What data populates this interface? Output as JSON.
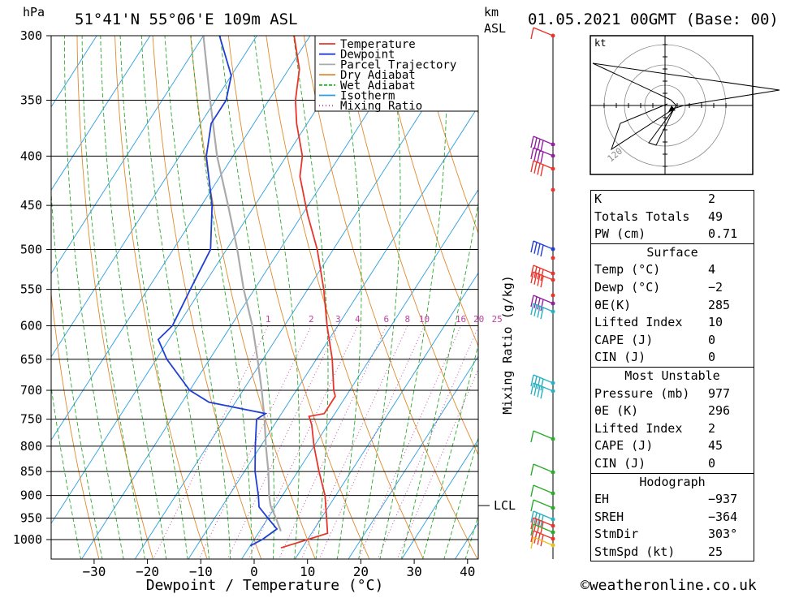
{
  "header": {
    "pressure_unit": "hPa",
    "location": "51°41'N 55°06'E 109m ASL",
    "km_label": "km",
    "asl_label": "ASL",
    "datetime": "01.05.2021 00GMT (Base: 00)"
  },
  "chart_data": {
    "type": "line",
    "xlabel": "Dewpoint / Temperature (°C)",
    "ylabel": "hPa",
    "mixing_ratio_axis_label": "Mixing Ratio (g/kg)",
    "x_ticks": [
      -30,
      -20,
      -10,
      0,
      10,
      20,
      30,
      40
    ],
    "y_ticks": [
      300,
      350,
      400,
      450,
      500,
      550,
      600,
      650,
      700,
      750,
      800,
      850,
      900,
      950,
      1000
    ],
    "pressure_range": [
      300,
      1050
    ],
    "mixing_ratio_labels": [
      "1",
      "2",
      "3",
      "4",
      "6",
      "8",
      "10",
      "16",
      "20",
      "25"
    ],
    "lcl_label": "LCL",
    "lcl_pressure": 922,
    "legend": {
      "placement": "top-right",
      "entries": [
        {
          "name": "Temperature",
          "color": "#e8352b"
        },
        {
          "name": "Dewpoint",
          "color": "#1f3fd4"
        },
        {
          "name": "Parcel Trajectory",
          "color": "#aaaaaa"
        },
        {
          "name": "Dry Adiabat",
          "color": "#e08a2c"
        },
        {
          "name": "Wet Adiabat",
          "color": "#2aaa2a"
        },
        {
          "name": "Isotherm",
          "color": "#2a9ee0"
        },
        {
          "name": "Mixing Ratio",
          "color": "#c040a0"
        }
      ]
    },
    "series": [
      {
        "name": "Temperature",
        "color": "#e8352b",
        "points": [
          {
            "p": 1020,
            "t": 6
          },
          {
            "p": 1000,
            "t": 10
          },
          {
            "p": 985,
            "t": 13
          },
          {
            "p": 950,
            "t": 11
          },
          {
            "p": 900,
            "t": 8
          },
          {
            "p": 850,
            "t": 4
          },
          {
            "p": 800,
            "t": 0
          },
          {
            "p": 760,
            "t": -3
          },
          {
            "p": 745,
            "t": -4.5
          },
          {
            "p": 740,
            "t": -2
          },
          {
            "p": 710,
            "t": -2
          },
          {
            "p": 700,
            "t": -3
          },
          {
            "p": 650,
            "t": -7
          },
          {
            "p": 600,
            "t": -12
          },
          {
            "p": 550,
            "t": -17
          },
          {
            "p": 500,
            "t": -23
          },
          {
            "p": 460,
            "t": -29
          },
          {
            "p": 420,
            "t": -35
          },
          {
            "p": 400,
            "t": -37
          },
          {
            "p": 370,
            "t": -42
          },
          {
            "p": 350,
            "t": -45
          },
          {
            "p": 325,
            "t": -48
          },
          {
            "p": 300,
            "t": -53
          }
        ]
      },
      {
        "name": "Dewpoint",
        "color": "#1f3fd4",
        "points": [
          {
            "p": 1015,
            "t": 0
          },
          {
            "p": 1000,
            "t": 1.5
          },
          {
            "p": 975,
            "t": 3
          },
          {
            "p": 950,
            "t": 0
          },
          {
            "p": 925,
            "t": -3
          },
          {
            "p": 900,
            "t": -4.5
          },
          {
            "p": 850,
            "t": -8
          },
          {
            "p": 800,
            "t": -11
          },
          {
            "p": 750,
            "t": -14
          },
          {
            "p": 740,
            "t": -13
          },
          {
            "p": 720,
            "t": -25
          },
          {
            "p": 700,
            "t": -30
          },
          {
            "p": 650,
            "t": -38
          },
          {
            "p": 620,
            "t": -42
          },
          {
            "p": 600,
            "t": -41
          },
          {
            "p": 550,
            "t": -42
          },
          {
            "p": 500,
            "t": -43
          },
          {
            "p": 450,
            "t": -48
          },
          {
            "p": 400,
            "t": -55
          },
          {
            "p": 370,
            "t": -58
          },
          {
            "p": 350,
            "t": -58
          },
          {
            "p": 330,
            "t": -60
          },
          {
            "p": 300,
            "t": -67
          }
        ]
      },
      {
        "name": "Parcel Trajectory",
        "color": "#aaaaaa",
        "points": [
          {
            "p": 980,
            "t": 4
          },
          {
            "p": 950,
            "t": 1.5
          },
          {
            "p": 922,
            "t": -1
          },
          {
            "p": 900,
            "t": -2.5
          },
          {
            "p": 850,
            "t": -5.5
          },
          {
            "p": 800,
            "t": -9
          },
          {
            "p": 750,
            "t": -12.5
          },
          {
            "p": 700,
            "t": -16.5
          },
          {
            "p": 650,
            "t": -21
          },
          {
            "p": 600,
            "t": -26
          },
          {
            "p": 550,
            "t": -32
          },
          {
            "p": 500,
            "t": -38
          },
          {
            "p": 450,
            "t": -45
          },
          {
            "p": 400,
            "t": -53
          },
          {
            "p": 350,
            "t": -61
          },
          {
            "p": 300,
            "t": -70
          }
        ]
      }
    ]
  },
  "hodograph": {
    "unit_label": "kt",
    "ring_label": "120"
  },
  "indices": [
    {
      "label": "K",
      "value": "2"
    },
    {
      "label": "Totals Totals",
      "value": "49"
    },
    {
      "label": "PW (cm)",
      "value": "0.71"
    }
  ],
  "surface": {
    "title": "Surface",
    "rows": [
      {
        "label": "Temp (°C)",
        "value": "4"
      },
      {
        "label": "Dewp (°C)",
        "value": "−2"
      },
      {
        "label": "θE(K)",
        "value": "285"
      },
      {
        "label": "Lifted Index",
        "value": "10"
      },
      {
        "label": "CAPE (J)",
        "value": "0"
      },
      {
        "label": "CIN (J)",
        "value": "0"
      }
    ]
  },
  "most_unstable": {
    "title": "Most Unstable",
    "rows": [
      {
        "label": "Pressure (mb)",
        "value": "977"
      },
      {
        "label": "θE (K)",
        "value": "296"
      },
      {
        "label": "Lifted Index",
        "value": "2"
      },
      {
        "label": "CAPE (J)",
        "value": "45"
      },
      {
        "label": "CIN (J)",
        "value": "0"
      }
    ]
  },
  "hodograph_table": {
    "title": "Hodograph",
    "rows": [
      {
        "label": "EH",
        "value": "−937"
      },
      {
        "label": "SREH",
        "value": "−364"
      },
      {
        "label": "StmDir",
        "value": "303°"
      },
      {
        "label": "StmSpd (kt)",
        "value": "25"
      }
    ]
  },
  "footer": {
    "copyright": "©weatheronline.co.uk"
  }
}
